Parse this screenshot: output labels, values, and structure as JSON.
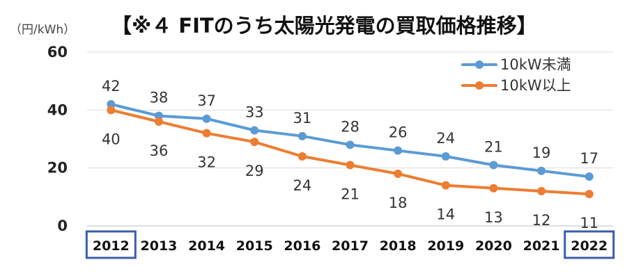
{
  "chart_data": {
    "type": "line",
    "title": "【※４ FITのうち太陽光発電の買取価格推移】",
    "unit_label": "（円/kWh）",
    "x": [
      "2012",
      "2013",
      "2014",
      "2015",
      "2016",
      "2017",
      "2018",
      "2019",
      "2020",
      "2021",
      "2022"
    ],
    "ylim": [
      0,
      60
    ],
    "yticks": [
      0,
      20,
      40,
      60
    ],
    "grid": true,
    "legend_position": "top-right",
    "highlighted_categories": [
      "2012",
      "2022"
    ],
    "highlight_color": "#3a5dab",
    "series": [
      {
        "name": "10kW未満",
        "color": "#5b9bd5",
        "values": [
          42,
          38,
          37,
          33,
          31,
          28,
          26,
          24,
          21,
          19,
          17
        ],
        "labels": [
          "42",
          "38",
          "37",
          "33",
          "31",
          "28",
          "26",
          "24",
          "21",
          "19",
          "17"
        ]
      },
      {
        "name": "10kW以上",
        "color": "#ed7d31",
        "values": [
          40,
          36,
          32,
          29,
          24,
          21,
          18,
          14,
          13,
          12,
          11
        ],
        "labels": [
          "40",
          "36",
          "32",
          "29",
          "24",
          "21",
          "18",
          "14",
          "13",
          "12",
          "11"
        ]
      }
    ]
  }
}
